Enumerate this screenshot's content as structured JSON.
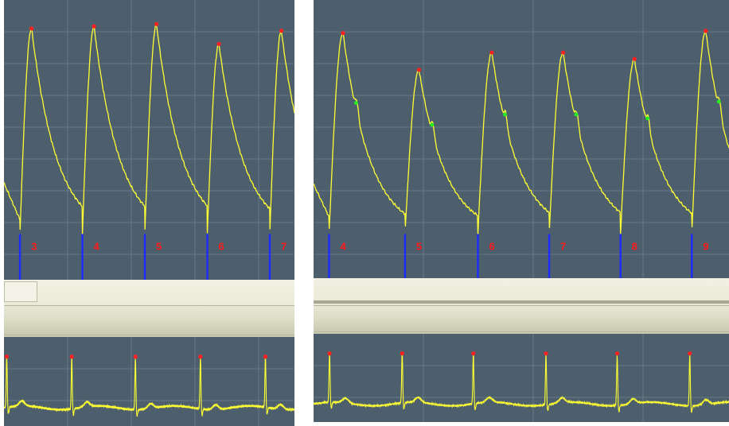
{
  "chart_data": [
    {
      "type": "line",
      "panel": "left-pressure",
      "title": "",
      "xlabel": "",
      "ylabel": "",
      "beats": [
        {
          "label": "3",
          "onset": 0.55,
          "peak": 0.95,
          "peak_amp": 0.95
        },
        {
          "label": "4",
          "onset": 2.7,
          "peak": 3.1,
          "peak_amp": 0.96
        },
        {
          "label": "5",
          "onset": 4.85,
          "peak": 5.25,
          "peak_amp": 0.97
        },
        {
          "label": "6",
          "onset": 7.0,
          "peak": 7.4,
          "peak_amp": 0.88
        },
        {
          "label": "7",
          "onset": 9.15,
          "peak": 9.55,
          "peak_amp": 0.94
        }
      ],
      "xlim": [
        0,
        10
      ],
      "ylim": [
        0,
        1
      ],
      "colors": {
        "line": "#ffff33",
        "peak_marker": "#ff2020",
        "onset_marker": "#1c2cff",
        "label": "#ff1a1a",
        "background": "#4d5f6d",
        "grid": "#7f8e99"
      }
    },
    {
      "type": "line",
      "panel": "right-pressure",
      "title": "",
      "xlabel": "",
      "ylabel": "",
      "beats": [
        {
          "label": "4",
          "onset": 0.5,
          "peak": 0.95,
          "peak_amp": 0.95,
          "notch": true
        },
        {
          "label": "5",
          "onset": 2.95,
          "peak": 3.4,
          "peak_amp": 0.78,
          "notch": true
        },
        {
          "label": "6",
          "onset": 5.3,
          "peak": 5.75,
          "peak_amp": 0.86,
          "notch": true
        },
        {
          "label": "7",
          "onset": 7.6,
          "peak": 8.05,
          "peak_amp": 0.86,
          "notch": true
        },
        {
          "label": "8",
          "onset": 9.9,
          "peak": 10.35,
          "peak_amp": 0.83,
          "notch": true
        },
        {
          "label": "9",
          "onset": 12.2,
          "peak": 12.65,
          "peak_amp": 0.96,
          "notch": true
        }
      ],
      "xlim": [
        0,
        13.4
      ],
      "ylim": [
        0,
        1
      ],
      "colors": {
        "line": "#ffff33",
        "peak_marker": "#ff2020",
        "notch_marker": "#22ee22",
        "onset_marker": "#1c2cff",
        "label": "#ff1a1a",
        "background": "#4d5f6d",
        "grid": "#7f8e99"
      }
    },
    {
      "type": "line",
      "panel": "left-ecg",
      "title": "",
      "xlabel": "",
      "ylabel": "",
      "r_peaks": [
        0.1,
        2.45,
        4.75,
        7.1,
        9.45
      ],
      "xlim": [
        0,
        10.5
      ],
      "ylim": [
        -0.3,
        1
      ],
      "colors": {
        "line": "#ffff33",
        "peak_marker": "#ff2020",
        "background": "#4d5f6d",
        "grid": "#7f8e99"
      }
    },
    {
      "type": "line",
      "panel": "right-ecg",
      "title": "",
      "xlabel": "",
      "ylabel": "",
      "r_peaks": [
        0.55,
        3.05,
        5.5,
        8.0,
        10.45,
        12.95
      ],
      "xlim": [
        0,
        14.3
      ],
      "ylim": [
        -0.3,
        1
      ],
      "colors": {
        "line": "#ffff33",
        "peak_marker": "#ff2020",
        "background": "#4d5f6d",
        "grid": "#7f8e99"
      }
    }
  ]
}
